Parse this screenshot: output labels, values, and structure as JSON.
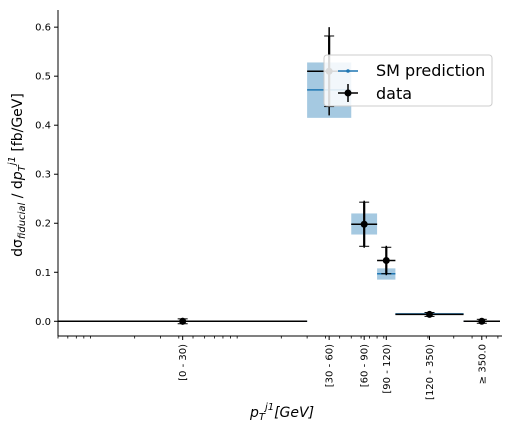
{
  "chart_data": {
    "type": "scatter",
    "title": "",
    "ylim": [
      -0.03,
      0.635
    ],
    "y_ticks": [
      0.0,
      0.1,
      0.2,
      0.3,
      0.4,
      0.5,
      0.6
    ],
    "y_tick_labels": [
      "0.0",
      "0.1",
      "0.2",
      "0.3",
      "0.4",
      "0.5",
      "0.6"
    ],
    "xscale": "log",
    "xlim": [
      0.6,
      640
    ],
    "bins": [
      {
        "label": "[0 - 30)",
        "low": 0.6,
        "high": 30,
        "center": 4.25,
        "sm": 0.0,
        "sm_low": 0.0,
        "sm_high": 0.0,
        "data": 0.0,
        "err_stat": 0.005,
        "err_tot": 0.007
      },
      {
        "label": "[30 - 60)",
        "low": 30,
        "high": 60,
        "center": 42.4,
        "sm": 0.472,
        "sm_low": 0.415,
        "sm_high": 0.528,
        "data": 0.51,
        "err_stat": 0.072,
        "err_tot": 0.09
      },
      {
        "label": "[60 - 90)",
        "low": 60,
        "high": 90,
        "center": 73.5,
        "sm": 0.198,
        "sm_low": 0.177,
        "sm_high": 0.22,
        "data": 0.198,
        "err_stat": 0.045,
        "err_tot": 0.048
      },
      {
        "label": "[90 - 120)",
        "low": 90,
        "high": 120,
        "center": 104,
        "sm": 0.097,
        "sm_low": 0.085,
        "sm_high": 0.108,
        "data": 0.124,
        "err_stat": 0.027,
        "err_tot": 0.03
      },
      {
        "label": "[120 - 350)",
        "low": 120,
        "high": 350,
        "center": 205,
        "sm": 0.015,
        "sm_low": 0.013,
        "sm_high": 0.017,
        "data": 0.014,
        "err_stat": 0.004,
        "err_tot": 0.005
      },
      {
        "label": "≥ 350.0",
        "low": 350,
        "high": 620,
        "center": 466,
        "sm": 0.0,
        "sm_low": 0.0,
        "sm_high": 0.0,
        "data": 0.0,
        "err_stat": 0.004,
        "err_tot": 0.006
      }
    ],
    "series": [
      {
        "name": "SM prediction",
        "color": "#1f77b4"
      },
      {
        "name": "data",
        "color": "#000000"
      }
    ],
    "legend_position": "top-right",
    "grid": false
  }
}
